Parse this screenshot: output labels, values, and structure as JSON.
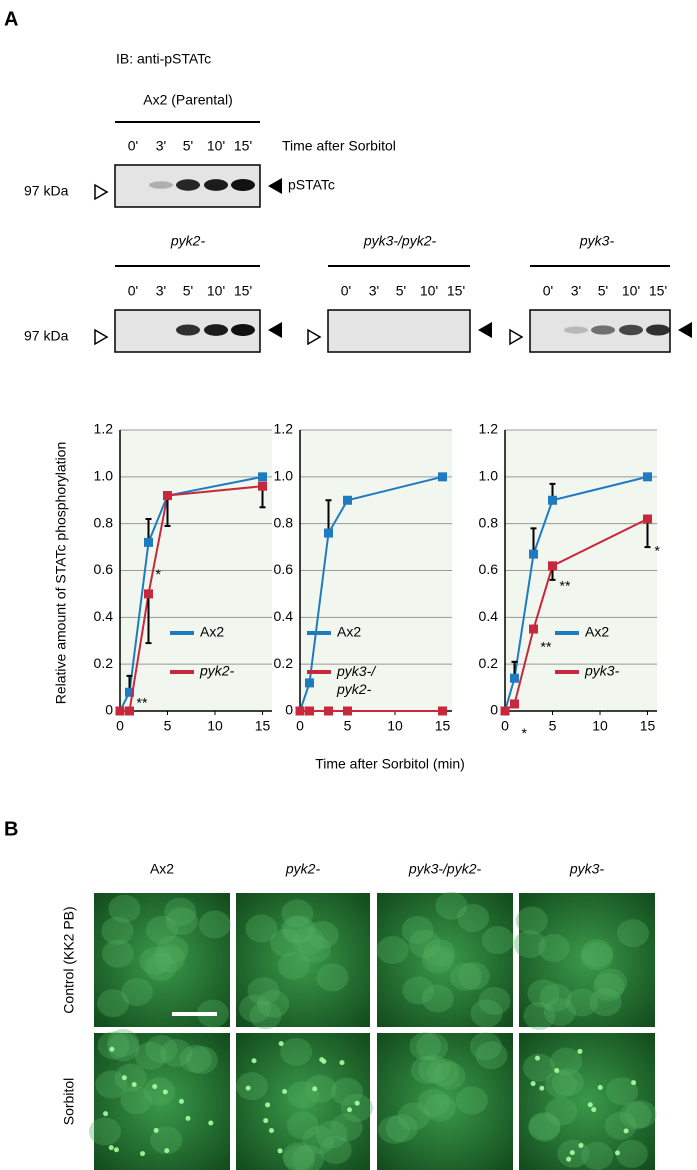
{
  "panel_a": {
    "label": "A",
    "antibody": "IB: anti-pSTATc",
    "parental": "Ax2 (Parental)",
    "time_labels": [
      "0'",
      "3'",
      "5'",
      "10'",
      "15'"
    ],
    "time_caption": "Time after Sorbitol",
    "marker": "97 kDa",
    "band": "pSTATc",
    "strains": [
      "pyk2-",
      "pyk3-/pyk2-",
      "pyk3-"
    ],
    "y_label": "Relative amount of STATc phosphorylation",
    "x_label": "Time after Sorbitol (min)"
  },
  "chart_data": [
    {
      "type": "line",
      "x": [
        0,
        1,
        3,
        5,
        15
      ],
      "xlim": [
        0,
        16
      ],
      "xticks": [
        0,
        5,
        10,
        15
      ],
      "ylim": [
        0,
        1.2
      ],
      "yticks": [
        0,
        0.2,
        0.4,
        0.6,
        0.8,
        {
          "value": 1,
          "label": "1.0"
        },
        1.2
      ],
      "grid": true,
      "legend": "right",
      "series": [
        {
          "name": "Ax2",
          "color": "#1f7bc0",
          "values": [
            0,
            0.08,
            0.72,
            0.92,
            1.0
          ],
          "errors": [
            null,
            0.07,
            0.1,
            null,
            null
          ]
        },
        {
          "name": "pyk2-",
          "color": "#c8283c",
          "values": [
            0,
            0,
            0.5,
            0.92,
            0.96
          ],
          "errors": [
            null,
            null,
            0.21,
            0.13,
            0.09
          ]
        }
      ],
      "annotations": [
        {
          "text": "*",
          "x": 3,
          "y": 0.58
        },
        {
          "text": "**",
          "x": 1,
          "y": 0.03
        }
      ]
    },
    {
      "type": "line",
      "x": [
        0,
        1,
        3,
        5,
        15
      ],
      "xlim": [
        0,
        16
      ],
      "xticks": [
        0,
        5,
        10,
        15
      ],
      "ylim": [
        0,
        1.2
      ],
      "yticks": [
        0,
        0.2,
        0.4,
        0.6,
        0.8,
        {
          "value": 1,
          "label": "1.0"
        },
        1.2
      ],
      "grid": true,
      "legend": "right",
      "series": [
        {
          "name": "Ax2",
          "color": "#1f7bc0",
          "values": [
            0,
            0.12,
            0.76,
            0.9,
            1.0
          ],
          "errors": [
            null,
            null,
            0.14,
            null,
            null
          ]
        },
        {
          "name": "pyk3-/pyk2-",
          "color": "#c8283c",
          "values": [
            0,
            0,
            0,
            0,
            0
          ],
          "errors": [
            null,
            null,
            null,
            null,
            null
          ]
        }
      ],
      "annotations": []
    },
    {
      "type": "line",
      "x": [
        0,
        1,
        3,
        5,
        15
      ],
      "xlim": [
        0,
        16
      ],
      "xticks": [
        0,
        5,
        10,
        15
      ],
      "ylim": [
        0,
        1.2
      ],
      "yticks": [
        0,
        0.2,
        0.4,
        0.6,
        0.8,
        {
          "value": 1,
          "label": "1.0"
        },
        1.2
      ],
      "grid": true,
      "legend": "right",
      "series": [
        {
          "name": "Ax2",
          "color": "#1f7bc0",
          "values": [
            0,
            0.14,
            0.67,
            0.9,
            1.0
          ],
          "errors": [
            null,
            0.07,
            0.11,
            0.07,
            null
          ]
        },
        {
          "name": "pyk3-",
          "color": "#c8283c",
          "values": [
            0,
            0.03,
            0.35,
            0.62,
            0.82
          ],
          "errors": [
            null,
            null,
            null,
            0.06,
            0.12
          ]
        }
      ],
      "annotations": [
        {
          "text": "*",
          "x": 1,
          "y": -0.1
        },
        {
          "text": "**",
          "x": 3,
          "y": 0.27
        },
        {
          "text": "**",
          "x": 5,
          "y": 0.53
        },
        {
          "text": "*",
          "x": 15,
          "y": 0.68
        }
      ]
    }
  ],
  "panel_b": {
    "label": "B",
    "columns": [
      "Ax2",
      "pyk2-",
      "pyk3-/pyk2-",
      "pyk3-"
    ],
    "rows": [
      "Control (KK2 PB)",
      "Sorbitol"
    ]
  }
}
